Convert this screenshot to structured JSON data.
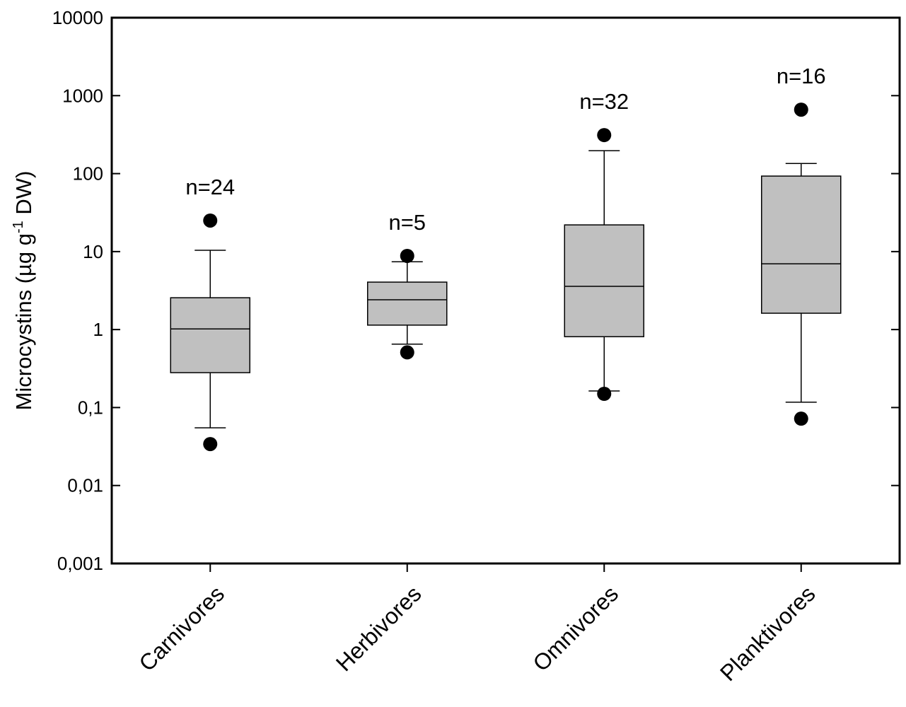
{
  "chart_data": {
    "type": "box",
    "y_label": [
      "Microcystins (µg g",
      "-1",
      " DW)"
    ],
    "categories": [
      "Carnivores",
      "Herbivores",
      "Omnivores",
      "Planktivores"
    ],
    "boxes": [
      {
        "whisker_low": 0.055,
        "q1": 0.28,
        "median": 1.02,
        "q3": 2.56,
        "whisker_high": 10.4,
        "outliers": [
          25,
          0.034
        ],
        "n_label": "n=24"
      },
      {
        "whisker_low": 0.65,
        "q1": 1.14,
        "median": 2.41,
        "q3": 4.06,
        "whisker_high": 7.4,
        "outliers": [
          8.8,
          0.51
        ],
        "n_label": "n=5"
      },
      {
        "whisker_low": 0.163,
        "q1": 0.81,
        "median": 3.58,
        "q3": 22,
        "whisker_high": 197,
        "outliers": [
          312,
          0.15
        ],
        "n_label": "n=32"
      },
      {
        "whisker_low": 0.117,
        "q1": 1.62,
        "median": 6.98,
        "q3": 93,
        "whisker_high": 135,
        "outliers": [
          661,
          0.072
        ],
        "n_label": "n=16"
      }
    ],
    "color": "#c0c0c0",
    "log_y": true,
    "ylim": [
      0.001,
      10000
    ],
    "yticks": [
      {
        "value": 0.001,
        "label": "0,001"
      },
      {
        "value": 0.01,
        "label": "0,01"
      },
      {
        "value": 0.1,
        "label": "0,1"
      },
      1,
      10,
      100,
      1000,
      10000
    ]
  }
}
